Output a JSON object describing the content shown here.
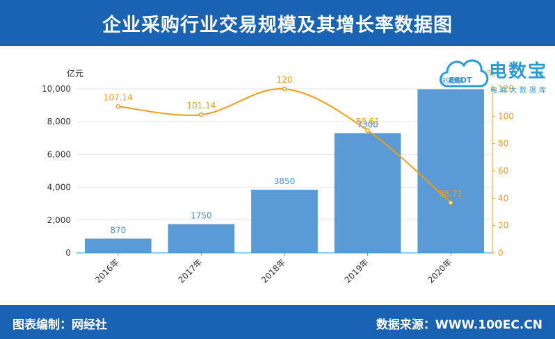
{
  "header": {
    "title": "企业采购行业交易规模及其增长率数据图"
  },
  "footer": {
    "left": "图表编制：网经社",
    "right": "数据来源：WWW.100EC.CN"
  },
  "watermark": {
    "brand": "电数宝",
    "tagline": "电商大数据库",
    "cloud_text": "EBDT"
  },
  "colors": {
    "header_bg": "#1a63b3",
    "bar": "#5b9bd5",
    "line": "#f39c12",
    "bar_label": "#4a8cc8",
    "line_label": "#f39c12"
  },
  "chart_data": {
    "type": "bar",
    "categories": [
      "2016年",
      "2017年",
      "2018年",
      "2019年",
      "2020年"
    ],
    "series": [
      {
        "type": "bar",
        "axis": "left",
        "values": [
          870,
          1750,
          3850,
          7300,
          9980
        ]
      },
      {
        "type": "line",
        "axis": "right",
        "smooth": true,
        "values": [
          107.14,
          101.14,
          120,
          89.61,
          36.71
        ]
      }
    ],
    "y_left": {
      "unit": "亿元",
      "ylim": [
        0,
        10000
      ],
      "ticks": [
        "0",
        "2,000",
        "4,000",
        "6,000",
        "8,000",
        "10,000"
      ]
    },
    "y_right": {
      "unit": "%",
      "ylim": [
        0,
        120
      ],
      "ticks": [
        "0",
        "20",
        "40",
        "60",
        "80",
        "100",
        "120"
      ]
    },
    "grid": true
  }
}
